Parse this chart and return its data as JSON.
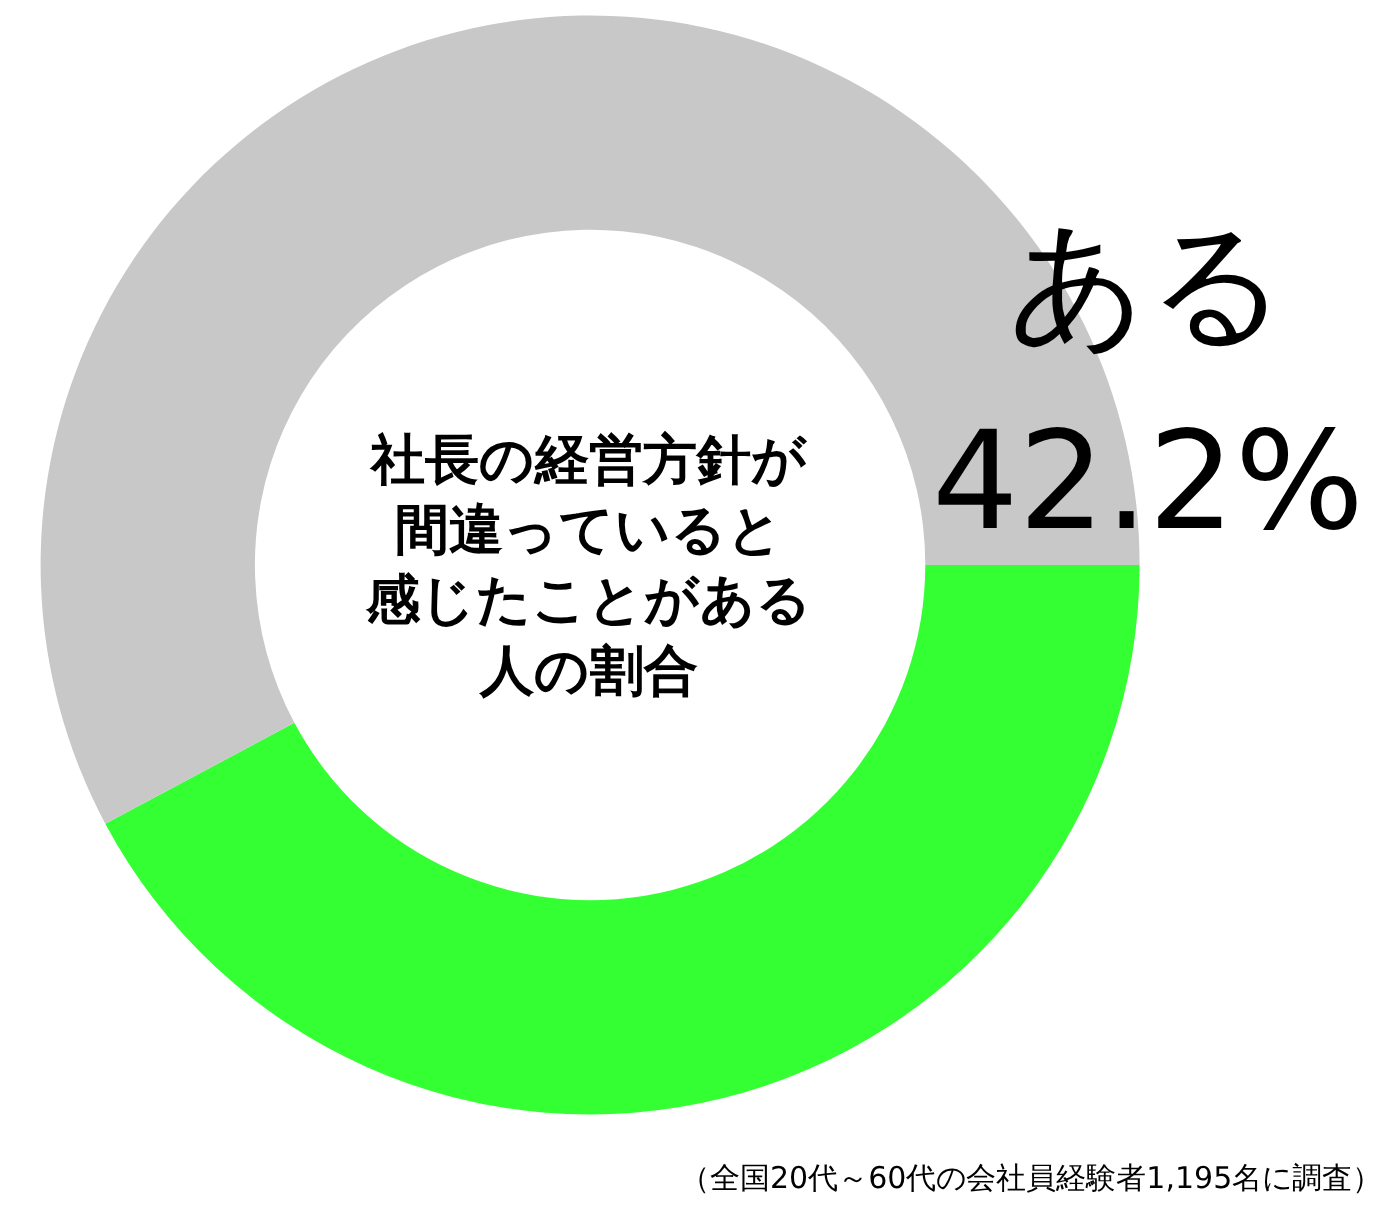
{
  "chart_data": {
    "type": "donut",
    "title": "社長の経営方針が間違っていると感じたことがある人の割合",
    "categories": [
      "ある",
      null
    ],
    "values": [
      42.2,
      57.8
    ],
    "colors": [
      "#33ff33",
      "#c8c8c8"
    ],
    "value_labels": [
      "42.2%",
      null
    ],
    "legend": false,
    "annotations": [
      "（全国20代～60代の会社員経験者1,195名に調査）"
    ]
  }
}
